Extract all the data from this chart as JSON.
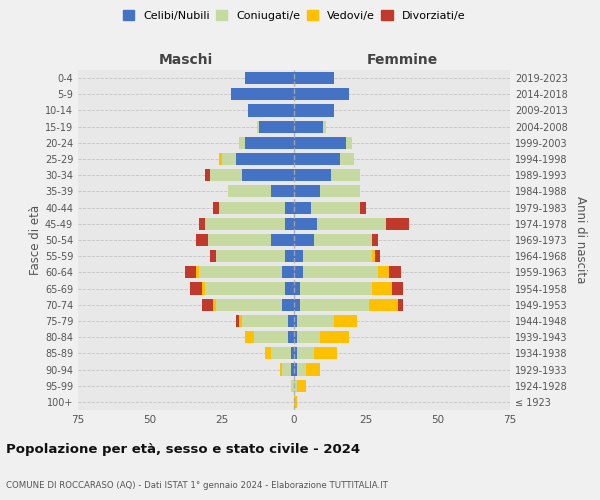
{
  "age_groups": [
    "100+",
    "95-99",
    "90-94",
    "85-89",
    "80-84",
    "75-79",
    "70-74",
    "65-69",
    "60-64",
    "55-59",
    "50-54",
    "45-49",
    "40-44",
    "35-39",
    "30-34",
    "25-29",
    "20-24",
    "15-19",
    "10-14",
    "5-9",
    "0-4"
  ],
  "birth_years": [
    "≤ 1923",
    "1924-1928",
    "1929-1933",
    "1934-1938",
    "1939-1943",
    "1944-1948",
    "1949-1953",
    "1954-1958",
    "1959-1963",
    "1964-1968",
    "1969-1973",
    "1974-1978",
    "1979-1983",
    "1984-1988",
    "1989-1993",
    "1994-1998",
    "1999-2003",
    "2004-2008",
    "2009-2013",
    "2014-2018",
    "2019-2023"
  ],
  "male": {
    "celibi": [
      0,
      0,
      1,
      1,
      2,
      2,
      4,
      3,
      4,
      3,
      8,
      3,
      3,
      8,
      18,
      20,
      17,
      12,
      16,
      22,
      17
    ],
    "coniugati": [
      0,
      1,
      3,
      7,
      12,
      16,
      23,
      28,
      29,
      24,
      22,
      28,
      23,
      15,
      11,
      5,
      2,
      1,
      0,
      0,
      0
    ],
    "vedovi": [
      0,
      0,
      1,
      2,
      3,
      1,
      1,
      1,
      1,
      0,
      0,
      0,
      0,
      0,
      0,
      1,
      0,
      0,
      0,
      0,
      0
    ],
    "divorziati": [
      0,
      0,
      0,
      0,
      0,
      1,
      4,
      4,
      4,
      2,
      4,
      2,
      2,
      0,
      2,
      0,
      0,
      0,
      0,
      0,
      0
    ]
  },
  "female": {
    "nubili": [
      0,
      0,
      1,
      1,
      1,
      1,
      2,
      2,
      3,
      3,
      7,
      8,
      6,
      9,
      13,
      16,
      18,
      10,
      14,
      19,
      14
    ],
    "coniugate": [
      0,
      1,
      3,
      6,
      8,
      13,
      24,
      25,
      26,
      24,
      20,
      24,
      17,
      14,
      10,
      5,
      2,
      1,
      0,
      0,
      0
    ],
    "vedove": [
      1,
      3,
      5,
      8,
      10,
      8,
      10,
      7,
      4,
      1,
      0,
      0,
      0,
      0,
      0,
      0,
      0,
      0,
      0,
      0,
      0
    ],
    "divorziate": [
      0,
      0,
      0,
      0,
      0,
      0,
      2,
      4,
      4,
      2,
      2,
      8,
      2,
      0,
      0,
      0,
      0,
      0,
      0,
      0,
      0
    ]
  },
  "color_celibi": "#4472c4",
  "color_coniugati": "#c5d9a0",
  "color_vedovi": "#ffc000",
  "color_divorziati": "#c0392b",
  "xlim": 75,
  "title": "Popolazione per età, sesso e stato civile - 2024",
  "subtitle": "COMUNE DI ROCCARASO (AQ) - Dati ISTAT 1° gennaio 2024 - Elaborazione TUTTITALIA.IT",
  "ylabel_left": "Fasce di età",
  "ylabel_right": "Anni di nascita",
  "xlabel_left": "Maschi",
  "xlabel_right": "Femmine",
  "background_color": "#f0f0f0",
  "plot_bg_color": "#e8e8e8"
}
